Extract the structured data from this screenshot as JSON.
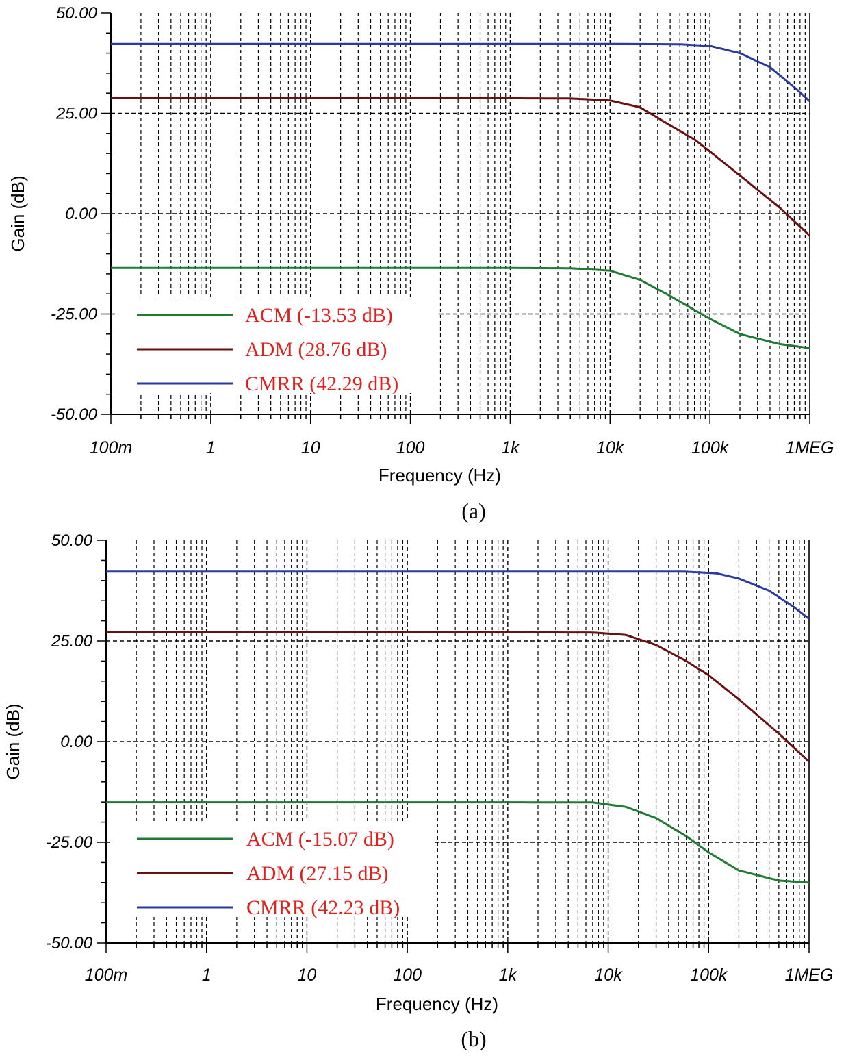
{
  "colors": {
    "ACM": "#1f7a34",
    "ADM": "#6b1010",
    "CMRR": "#2b3aa0",
    "legend_text": "#e0221c"
  },
  "chart_data": [
    {
      "type": "line",
      "caption": "(a)",
      "xlabel": "Frequency (Hz)",
      "ylabel": "Gain (dB)",
      "xscale": "log",
      "xlim": [
        0.1,
        1000000
      ],
      "ylim": [
        -50,
        50
      ],
      "x_ticks": [
        {
          "value": 0.1,
          "label": "100m"
        },
        {
          "value": 1,
          "label": "1"
        },
        {
          "value": 10,
          "label": "10"
        },
        {
          "value": 100,
          "label": "100"
        },
        {
          "value": 1000,
          "label": "1k"
        },
        {
          "value": 10000,
          "label": "10k"
        },
        {
          "value": 100000,
          "label": "100k"
        },
        {
          "value": 1000000,
          "label": "1MEG"
        }
      ],
      "y_ticks": [
        {
          "value": 50,
          "label": "50.00"
        },
        {
          "value": 25,
          "label": "25.00"
        },
        {
          "value": 0,
          "label": "0.00"
        },
        {
          "value": -25,
          "label": "-25.00"
        },
        {
          "value": -50,
          "label": "-50.00"
        }
      ],
      "grid": true,
      "legend_position": "bottom-left",
      "series": [
        {
          "key": "ACM",
          "name": "ACM (-13.53 dB)",
          "x": [
            0.1,
            1000,
            4000,
            10000,
            20000,
            40000,
            70000,
            100000,
            200000,
            500000,
            1000000
          ],
          "y": [
            -13.53,
            -13.53,
            -13.6,
            -14.2,
            -16.5,
            -20.5,
            -24.0,
            -26.2,
            -30.0,
            -32.5,
            -33.5
          ]
        },
        {
          "key": "ADM",
          "name": "ADM (28.76 dB)",
          "x": [
            0.1,
            1000,
            4000,
            10000,
            20000,
            40000,
            70000,
            100000,
            200000,
            500000,
            1000000
          ],
          "y": [
            28.76,
            28.76,
            28.7,
            28.2,
            26.5,
            22.0,
            18.5,
            15.5,
            9.5,
            1.5,
            -5.5
          ]
        },
        {
          "key": "CMRR",
          "name": "CMRR (42.29 dB)",
          "x": [
            0.1,
            10000,
            50000,
            100000,
            200000,
            400000,
            700000,
            1000000
          ],
          "y": [
            42.29,
            42.29,
            42.2,
            41.8,
            40.0,
            36.5,
            31.5,
            28.0
          ]
        }
      ]
    },
    {
      "type": "line",
      "caption": "(b)",
      "xlabel": "Frequency (Hz)",
      "ylabel": "Gain (dB)",
      "xscale": "log",
      "xlim": [
        0.1,
        1000000
      ],
      "ylim": [
        -50,
        50
      ],
      "x_ticks": [
        {
          "value": 0.1,
          "label": "100m"
        },
        {
          "value": 1,
          "label": "1"
        },
        {
          "value": 10,
          "label": "10"
        },
        {
          "value": 100,
          "label": "100"
        },
        {
          "value": 1000,
          "label": "1k"
        },
        {
          "value": 10000,
          "label": "10k"
        },
        {
          "value": 100000,
          "label": "100k"
        },
        {
          "value": 1000000,
          "label": "1MEG"
        }
      ],
      "y_ticks": [
        {
          "value": 50,
          "label": "50.00"
        },
        {
          "value": 25,
          "label": "25.00"
        },
        {
          "value": 0,
          "label": "0.00"
        },
        {
          "value": -25,
          "label": "-25.00"
        },
        {
          "value": -50,
          "label": "-50.00"
        }
      ],
      "grid": true,
      "legend_position": "bottom-left",
      "series": [
        {
          "key": "ACM",
          "name": "ACM (-15.07 dB)",
          "x": [
            0.1,
            1000,
            7000,
            15000,
            30000,
            60000,
            100000,
            200000,
            500000,
            1000000
          ],
          "y": [
            -15.07,
            -15.07,
            -15.1,
            -16.2,
            -19.0,
            -23.5,
            -27.5,
            -32.0,
            -34.5,
            -35.0
          ]
        },
        {
          "key": "ADM",
          "name": "ADM (27.15 dB)",
          "x": [
            0.1,
            1000,
            7000,
            15000,
            30000,
            60000,
            100000,
            200000,
            500000,
            1000000
          ],
          "y": [
            27.15,
            27.15,
            27.1,
            26.5,
            24.0,
            20.0,
            16.5,
            10.5,
            2.0,
            -5.0
          ]
        },
        {
          "key": "CMRR",
          "name": "CMRR (42.23 dB)",
          "x": [
            0.1,
            10000,
            60000,
            120000,
            200000,
            400000,
            700000,
            1000000
          ],
          "y": [
            42.23,
            42.23,
            42.2,
            41.8,
            40.5,
            37.5,
            33.5,
            30.5
          ]
        }
      ]
    }
  ]
}
